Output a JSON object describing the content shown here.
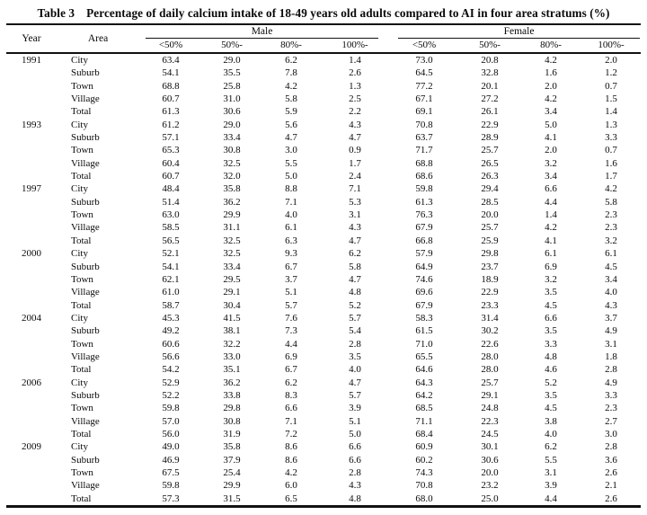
{
  "title": {
    "label": "Table 3",
    "text": "Percentage of daily calcium intake of 18-49 years old adults compared to AI in four area stratums (%)"
  },
  "table": {
    "header": {
      "year": "Year",
      "area": "Area",
      "male": "Male",
      "female": "Female",
      "male_subcols": [
        "<50%",
        "50%-",
        "80%-",
        "100%-"
      ],
      "female_subcols": [
        "<50%",
        "50%-",
        "80%-",
        "100%-"
      ]
    },
    "groups": [
      {
        "year": "1991",
        "rows": [
          {
            "area": "City",
            "values": [
              "63.4",
              "29.0",
              "6.2",
              "1.4",
              "73.0",
              "20.8",
              "4.2",
              "2.0"
            ]
          },
          {
            "area": "Suburb",
            "values": [
              "54.1",
              "35.5",
              "7.8",
              "2.6",
              "64.5",
              "32.8",
              "1.6",
              "1.2"
            ]
          },
          {
            "area": "Town",
            "values": [
              "68.8",
              "25.8",
              "4.2",
              "1.3",
              "77.2",
              "20.1",
              "2.0",
              "0.7"
            ]
          },
          {
            "area": "Village",
            "values": [
              "60.7",
              "31.0",
              "5.8",
              "2.5",
              "67.1",
              "27.2",
              "4.2",
              "1.5"
            ]
          },
          {
            "area": "Total",
            "values": [
              "61.3",
              "30.6",
              "5.9",
              "2.2",
              "69.1",
              "26.1",
              "3.4",
              "1.4"
            ]
          }
        ]
      },
      {
        "year": "1993",
        "rows": [
          {
            "area": "City",
            "values": [
              "61.2",
              "29.0",
              "5.6",
              "4.3",
              "70.8",
              "22.9",
              "5.0",
              "1.3"
            ]
          },
          {
            "area": "Suburb",
            "values": [
              "57.1",
              "33.4",
              "4.7",
              "4.7",
              "63.7",
              "28.9",
              "4.1",
              "3.3"
            ]
          },
          {
            "area": "Town",
            "values": [
              "65.3",
              "30.8",
              "3.0",
              "0.9",
              "71.7",
              "25.7",
              "2.0",
              "0.7"
            ]
          },
          {
            "area": "Village",
            "values": [
              "60.4",
              "32.5",
              "5.5",
              "1.7",
              "68.8",
              "26.5",
              "3.2",
              "1.6"
            ]
          },
          {
            "area": "Total",
            "values": [
              "60.7",
              "32.0",
              "5.0",
              "2.4",
              "68.6",
              "26.3",
              "3.4",
              "1.7"
            ]
          }
        ]
      },
      {
        "year": "1997",
        "rows": [
          {
            "area": "City",
            "values": [
              "48.4",
              "35.8",
              "8.8",
              "7.1",
              "59.8",
              "29.4",
              "6.6",
              "4.2"
            ]
          },
          {
            "area": "Suburb",
            "values": [
              "51.4",
              "36.2",
              "7.1",
              "5.3",
              "61.3",
              "28.5",
              "4.4",
              "5.8"
            ]
          },
          {
            "area": "Town",
            "values": [
              "63.0",
              "29.9",
              "4.0",
              "3.1",
              "76.3",
              "20.0",
              "1.4",
              "2.3"
            ]
          },
          {
            "area": "Village",
            "values": [
              "58.5",
              "31.1",
              "6.1",
              "4.3",
              "67.9",
              "25.7",
              "4.2",
              "2.3"
            ]
          },
          {
            "area": "Total",
            "values": [
              "56.5",
              "32.5",
              "6.3",
              "4.7",
              "66.8",
              "25.9",
              "4.1",
              "3.2"
            ]
          }
        ]
      },
      {
        "year": "2000",
        "rows": [
          {
            "area": "City",
            "values": [
              "52.1",
              "32.5",
              "9.3",
              "6.2",
              "57.9",
              "29.8",
              "6.1",
              "6.1"
            ]
          },
          {
            "area": "Suburb",
            "values": [
              "54.1",
              "33.4",
              "6.7",
              "5.8",
              "64.9",
              "23.7",
              "6.9",
              "4.5"
            ]
          },
          {
            "area": "Town",
            "values": [
              "62.1",
              "29.5",
              "3.7",
              "4.7",
              "74.6",
              "18.9",
              "3.2",
              "3.4"
            ]
          },
          {
            "area": "Village",
            "values": [
              "61.0",
              "29.1",
              "5.1",
              "4.8",
              "69.6",
              "22.9",
              "3.5",
              "4.0"
            ]
          },
          {
            "area": "Total",
            "values": [
              "58.7",
              "30.4",
              "5.7",
              "5.2",
              "67.9",
              "23.3",
              "4.5",
              "4.3"
            ]
          }
        ]
      },
      {
        "year": "2004",
        "rows": [
          {
            "area": "City",
            "values": [
              "45.3",
              "41.5",
              "7.6",
              "5.7",
              "58.3",
              "31.4",
              "6.6",
              "3.7"
            ]
          },
          {
            "area": "Suburb",
            "values": [
              "49.2",
              "38.1",
              "7.3",
              "5.4",
              "61.5",
              "30.2",
              "3.5",
              "4.9"
            ]
          },
          {
            "area": "Town",
            "values": [
              "60.6",
              "32.2",
              "4.4",
              "2.8",
              "71.0",
              "22.6",
              "3.3",
              "3.1"
            ]
          },
          {
            "area": "Village",
            "values": [
              "56.6",
              "33.0",
              "6.9",
              "3.5",
              "65.5",
              "28.0",
              "4.8",
              "1.8"
            ]
          },
          {
            "area": "Total",
            "values": [
              "54.2",
              "35.1",
              "6.7",
              "4.0",
              "64.6",
              "28.0",
              "4.6",
              "2.8"
            ]
          }
        ]
      },
      {
        "year": "2006",
        "rows": [
          {
            "area": "City",
            "values": [
              "52.9",
              "36.2",
              "6.2",
              "4.7",
              "64.3",
              "25.7",
              "5.2",
              "4.9"
            ]
          },
          {
            "area": "Suburb",
            "values": [
              "52.2",
              "33.8",
              "8.3",
              "5.7",
              "64.2",
              "29.1",
              "3.5",
              "3.3"
            ]
          },
          {
            "area": "Town",
            "values": [
              "59.8",
              "29.8",
              "6.6",
              "3.9",
              "68.5",
              "24.8",
              "4.5",
              "2.3"
            ]
          },
          {
            "area": "Village",
            "values": [
              "57.0",
              "30.8",
              "7.1",
              "5.1",
              "71.1",
              "22.3",
              "3.8",
              "2.7"
            ]
          },
          {
            "area": "Total",
            "values": [
              "56.0",
              "31.9",
              "7.2",
              "5.0",
              "68.4",
              "24.5",
              "4.0",
              "3.0"
            ]
          }
        ]
      },
      {
        "year": "2009",
        "rows": [
          {
            "area": "City",
            "values": [
              "49.0",
              "35.8",
              "8.6",
              "6.6",
              "60.9",
              "30.1",
              "6.2",
              "2.8"
            ]
          },
          {
            "area": "Suburb",
            "values": [
              "46.9",
              "37.9",
              "8.6",
              "6.6",
              "60.2",
              "30.6",
              "5.5",
              "3.6"
            ]
          },
          {
            "area": "Town",
            "values": [
              "67.5",
              "25.4",
              "4.2",
              "2.8",
              "74.3",
              "20.0",
              "3.1",
              "2.6"
            ]
          },
          {
            "area": "Village",
            "values": [
              "59.8",
              "29.9",
              "6.0",
              "4.3",
              "70.8",
              "23.2",
              "3.9",
              "2.1"
            ]
          },
          {
            "area": "Total",
            "values": [
              "57.3",
              "31.5",
              "6.5",
              "4.8",
              "68.0",
              "25.0",
              "4.4",
              "2.6"
            ]
          }
        ]
      }
    ]
  }
}
